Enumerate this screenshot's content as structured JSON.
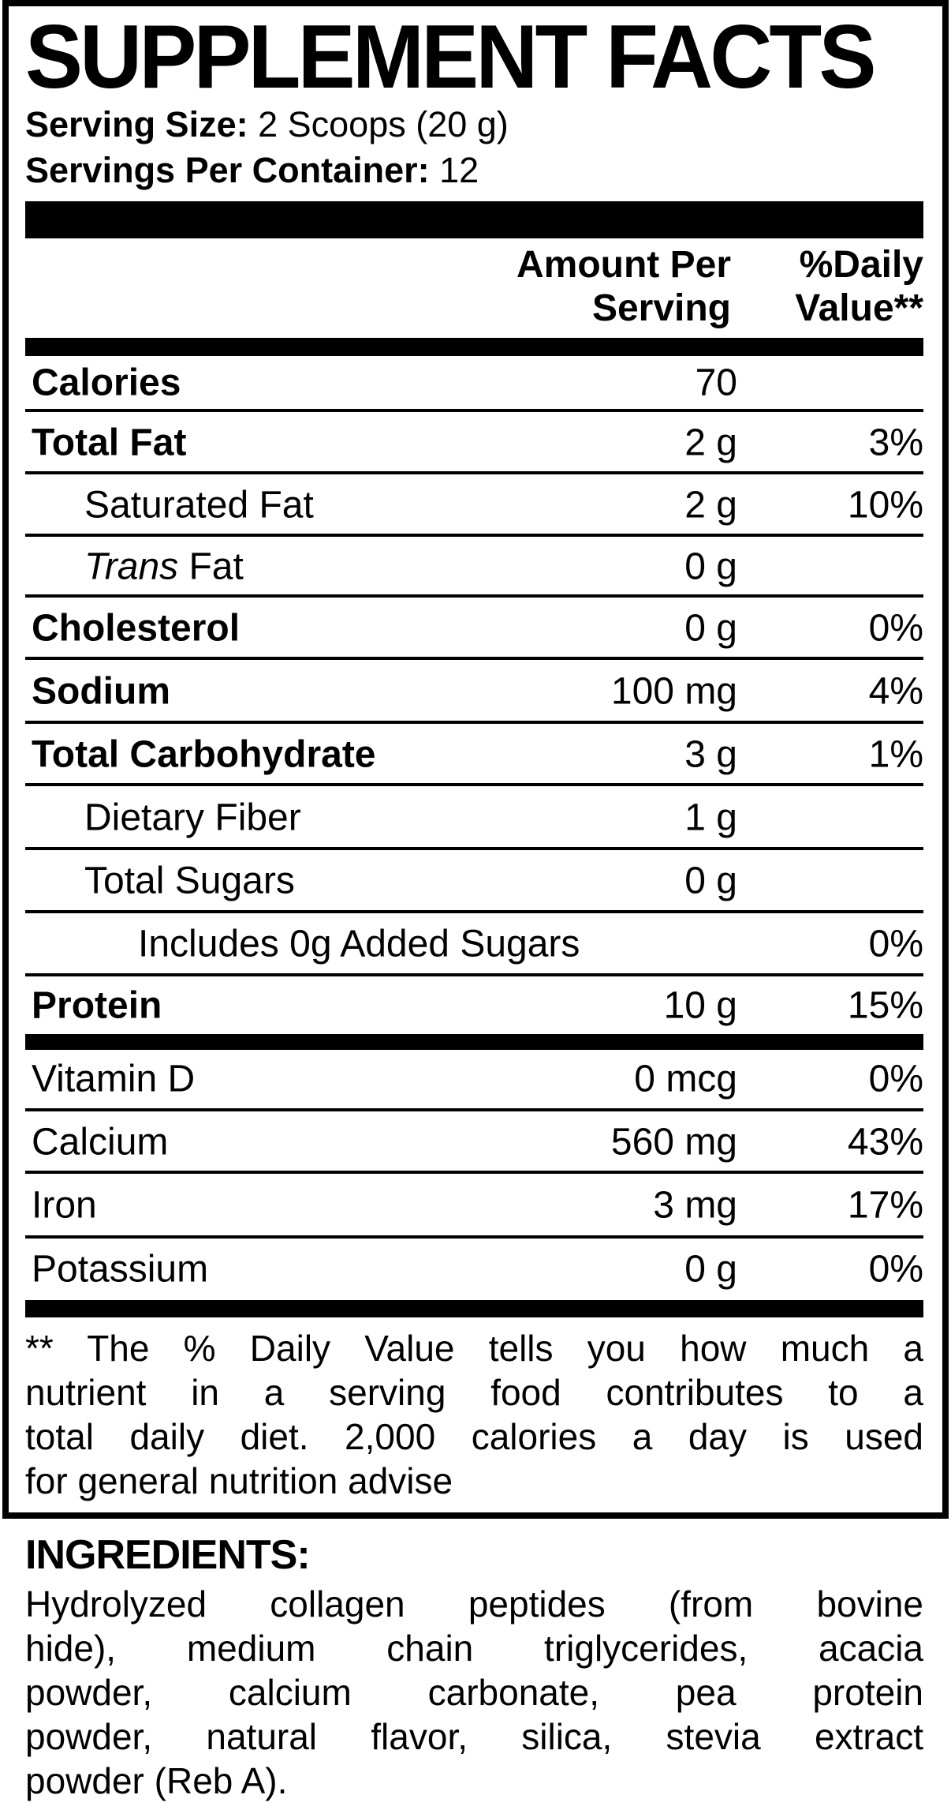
{
  "title": "SUPPLEMENT FACTS",
  "serving_size": {
    "label": "Serving Size:",
    "value": " 2 Scoops (20 g)"
  },
  "servings_per_container": {
    "label": "Servings Per Container:",
    "value": " 12"
  },
  "header": {
    "amount_line1": "Amount Per",
    "amount_line2": "Serving",
    "dv_line1": "%Daily",
    "dv_line2": "Value**"
  },
  "rows": [
    {
      "label": "Calories",
      "amount": "70",
      "dv": "",
      "bold": true,
      "indent": 0
    },
    {
      "label": "Total Fat",
      "amount": "2 g",
      "dv": "3%",
      "bold": true,
      "indent": 0
    },
    {
      "label": "Saturated Fat",
      "amount": "2 g",
      "dv": "10%",
      "bold": false,
      "indent": 1
    },
    {
      "label_italic": "Trans",
      "label": " Fat",
      "amount": "0 g",
      "dv": "",
      "bold": false,
      "indent": 1
    },
    {
      "label": "Cholesterol",
      "amount": "0 g",
      "dv": "0%",
      "bold": true,
      "indent": 0
    },
    {
      "label": "Sodium",
      "amount": "100 mg",
      "dv": "4%",
      "bold": true,
      "indent": 0
    },
    {
      "label": "Total Carbohydrate",
      "amount": "3 g",
      "dv": "1%",
      "bold": true,
      "indent": 0
    },
    {
      "label": "Dietary Fiber",
      "amount": "1 g",
      "dv": "",
      "bold": false,
      "indent": 1
    },
    {
      "label": "Total Sugars",
      "amount": "0 g",
      "dv": "",
      "bold": false,
      "indent": 1
    },
    {
      "label": "Includes 0g Added Sugars",
      "amount": "",
      "dv": "0%",
      "bold": false,
      "indent": 2
    },
    {
      "label": "Protein",
      "amount": "10 g",
      "dv": "15%",
      "bold": true,
      "indent": 0
    },
    {
      "label": "Vitamin D",
      "amount": "0 mcg",
      "dv": "0%",
      "bold": false,
      "indent": 0
    },
    {
      "label": "Calcium",
      "amount": "560 mg",
      "dv": "43%",
      "bold": false,
      "indent": 0
    },
    {
      "label": "Iron",
      "amount": "3 mg",
      "dv": "17%",
      "bold": false,
      "indent": 0
    },
    {
      "label": "Potassium",
      "amount": "0 g",
      "dv": "0%",
      "bold": false,
      "indent": 0
    }
  ],
  "footnote_lines": [
    "** The % Daily Value tells you how much a",
    "nutrient in a serving food contributes to a",
    "total daily diet. 2,000 calories a day is used",
    "for general nutrition advise"
  ],
  "ingredients": {
    "heading": "INGREDIENTS:",
    "lines": [
      "Hydrolyzed collagen peptides (from bovine",
      "hide), medium chain triglycerides, acacia",
      "powder, calcium carbonate, pea protein",
      "powder, natural flavor, silica, stevia extract",
      "powder (Reb A)."
    ]
  }
}
